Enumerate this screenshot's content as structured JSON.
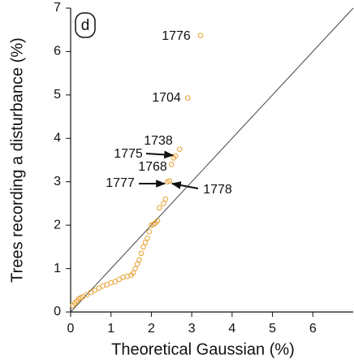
{
  "chart_data": {
    "type": "scatter",
    "panel_label": "d",
    "xlabel": "Theoretical Gaussian (%)",
    "ylabel": "Trees recording a disturbance (%)",
    "color": "#e8a030",
    "xlim": [
      0,
      7
    ],
    "ylim": [
      0,
      7
    ],
    "xticks": [
      0,
      1,
      2,
      3,
      4,
      5,
      6
    ],
    "yticks": [
      0,
      1,
      2,
      3,
      4,
      5,
      6,
      7
    ],
    "x": [
      0.05,
      0.1,
      0.15,
      0.2,
      0.25,
      0.3,
      0.4,
      0.5,
      0.6,
      0.7,
      0.8,
      0.9,
      1.0,
      1.1,
      1.2,
      1.3,
      1.4,
      1.5,
      1.55,
      1.6,
      1.65,
      1.7,
      1.75,
      1.8,
      1.85,
      1.9,
      1.95,
      2.0,
      2.05,
      2.1,
      2.15,
      2.2,
      2.3,
      2.35,
      2.4,
      2.45,
      2.5,
      2.55,
      2.6,
      2.7,
      2.9,
      3.22
    ],
    "y": [
      0.15,
      0.2,
      0.25,
      0.3,
      0.33,
      0.35,
      0.4,
      0.45,
      0.5,
      0.55,
      0.6,
      0.63,
      0.67,
      0.7,
      0.75,
      0.8,
      0.82,
      0.85,
      0.9,
      1.0,
      1.1,
      1.2,
      1.35,
      1.5,
      1.6,
      1.7,
      1.85,
      2.0,
      2.02,
      2.05,
      2.1,
      2.4,
      2.5,
      2.6,
      3.0,
      3.02,
      3.4,
      3.55,
      3.6,
      3.75,
      4.93,
      6.37
    ],
    "annotations": [
      "1776",
      "1704",
      "1738",
      "1775",
      "1768",
      "1777",
      "1778"
    ]
  }
}
